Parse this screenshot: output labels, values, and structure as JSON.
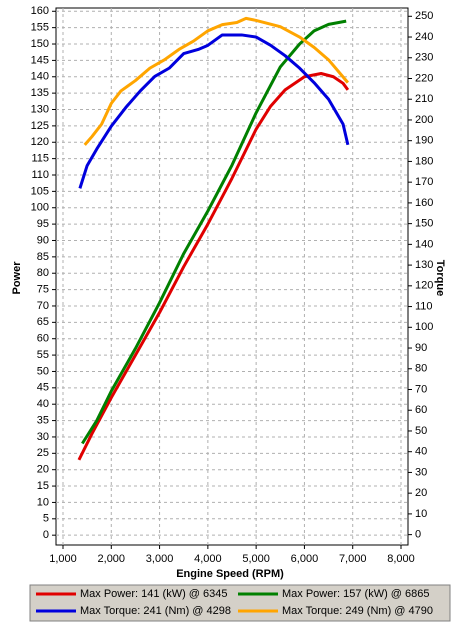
{
  "chart_data": {
    "type": "line",
    "x_label": "Engine Speed (RPM)",
    "y_label": "Power",
    "y2_label": "Torque",
    "y_label_color": "#e00000",
    "y2_label_color": "#0000cc",
    "xlim": [
      855,
      8145
    ],
    "xticks": [
      {
        "value": 1000,
        "label": "1,000"
      },
      {
        "value": 2000,
        "label": "2,000"
      },
      {
        "value": 3000,
        "label": "3,000"
      },
      {
        "value": 4000,
        "label": "4,000"
      },
      {
        "value": 5000,
        "label": "5,000"
      },
      {
        "value": 6000,
        "label": "6,000"
      },
      {
        "value": 7000,
        "label": "7,000"
      },
      {
        "value": 8000,
        "label": "8,000"
      }
    ],
    "ylim": [
      -3,
      161
    ],
    "yticks": [
      0,
      5,
      10,
      15,
      20,
      25,
      30,
      35,
      40,
      45,
      50,
      55,
      60,
      65,
      70,
      75,
      80,
      85,
      90,
      95,
      100,
      105,
      110,
      115,
      120,
      125,
      130,
      135,
      140,
      145,
      150,
      155,
      160
    ],
    "y2lim": [
      -5,
      254
    ],
    "y2ticks": [
      0,
      10,
      20,
      30,
      40,
      50,
      60,
      70,
      80,
      90,
      100,
      110,
      120,
      130,
      140,
      150,
      160,
      170,
      180,
      190,
      200,
      210,
      220,
      230,
      240,
      250
    ],
    "grid": true,
    "legend": "bottom",
    "series": [
      {
        "name": "Max Power: 141 (kW) @ 6345",
        "color": "#e00000",
        "axis": "y",
        "x": [
          1330,
          1600,
          2000,
          2500,
          3000,
          3500,
          4000,
          4500,
          5000,
          5300,
          5600,
          6000,
          6345,
          6600,
          6800,
          6900
        ],
        "values": [
          23,
          31,
          42,
          55,
          68,
          82,
          95,
          109,
          124,
          131,
          136,
          140,
          141,
          140,
          138,
          136
        ]
      },
      {
        "name": "Max Power: 157 (kW) @ 6865",
        "color": "#008000",
        "axis": "y",
        "x": [
          1400,
          1700,
          2000,
          2500,
          3000,
          3500,
          4000,
          4500,
          5000,
          5500,
          5900,
          6200,
          6500,
          6865
        ],
        "values": [
          28,
          35,
          44,
          57,
          71,
          86,
          99,
          113,
          129,
          143,
          150,
          154,
          156,
          157
        ]
      },
      {
        "name": "Max Torque: 241 (Nm) @ 4298",
        "color": "#0000dd",
        "axis": "y2",
        "x": [
          1350,
          1500,
          1700,
          2000,
          2300,
          2600,
          2900,
          3200,
          3500,
          3800,
          4000,
          4298,
          4700,
          5000,
          5300,
          5600,
          5900,
          6200,
          6500,
          6800,
          6900
        ],
        "values": [
          167,
          178,
          186,
          197,
          206,
          214,
          221,
          225,
          232,
          234,
          236,
          241,
          241,
          240,
          236,
          231,
          225,
          218,
          210,
          198,
          188
        ]
      },
      {
        "name": "Max Torque: 249 (Nm) @ 4790",
        "color": "#ffa500",
        "axis": "y2",
        "x": [
          1450,
          1600,
          1800,
          2000,
          2200,
          2500,
          2800,
          3100,
          3400,
          3700,
          4000,
          4300,
          4600,
          4790,
          5000,
          5500,
          5900,
          6200,
          6500,
          6900
        ],
        "values": [
          188,
          192,
          198,
          208,
          214,
          219,
          225,
          229,
          234,
          238,
          243,
          246,
          247,
          249,
          248,
          245,
          240,
          235,
          229,
          218
        ]
      }
    ]
  }
}
